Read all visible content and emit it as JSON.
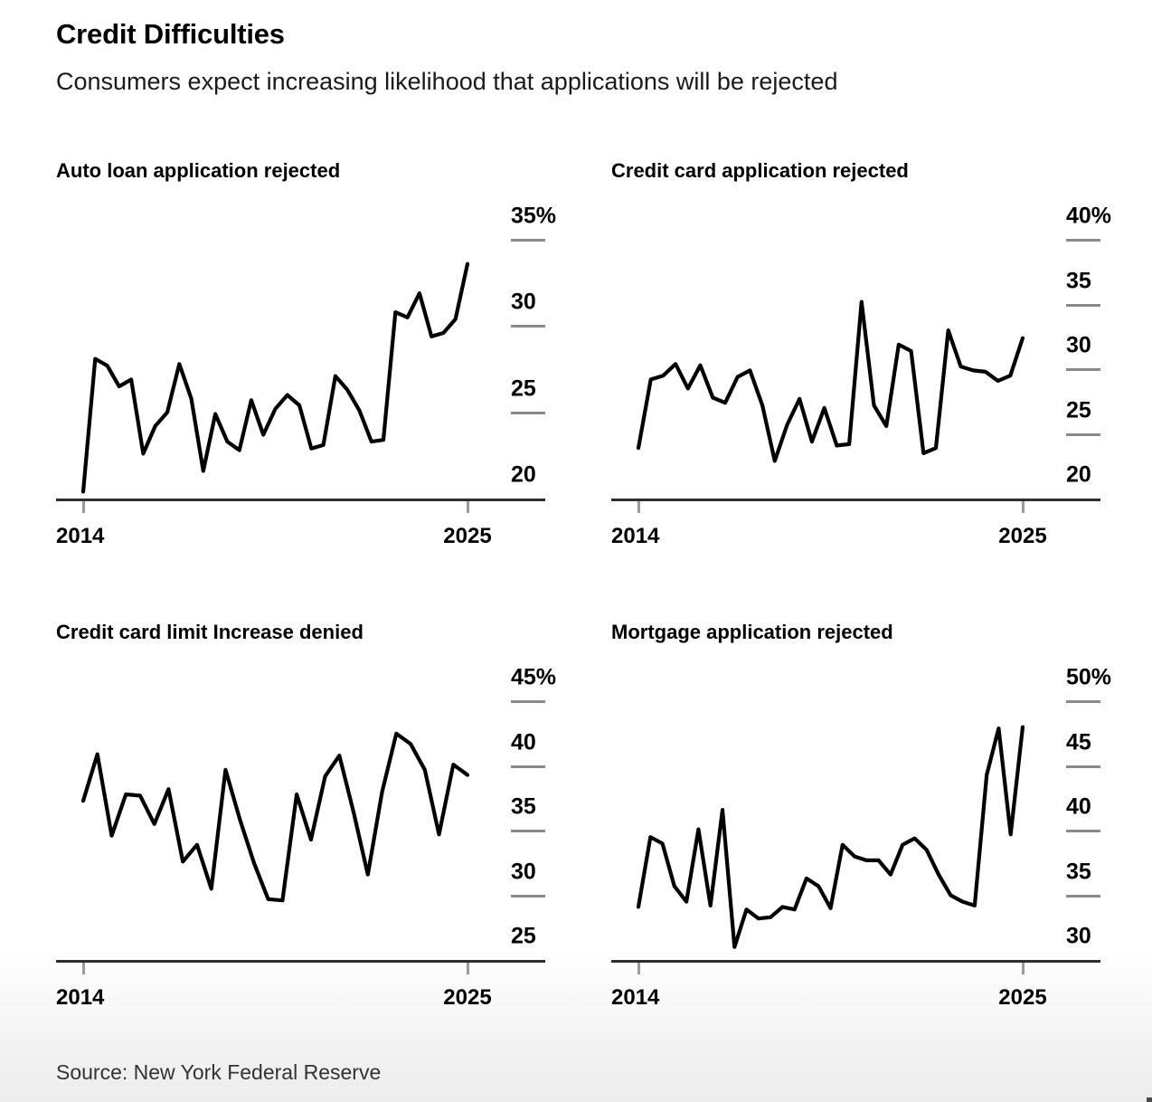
{
  "header": {
    "title": "Credit Difficulties",
    "subtitle": "Consumers expect increasing likelihood that applications will be rejected"
  },
  "source": {
    "label": "Source: New York Federal Reserve"
  },
  "colors": {
    "line": "#000000",
    "baseline": "#2e2e2e",
    "value_dash": "#8a8a8a",
    "axis_tick": "#9a9a9a",
    "source_text": "#333333",
    "bottom_fade": "#ececec"
  },
  "chart_data": [
    {
      "type": "line",
      "title": "Auto loan application rejected",
      "x_tick_labels": [
        "2014",
        "2025"
      ],
      "x_range": [
        2014,
        2025
      ],
      "unit": "%",
      "grid": "right-axis-dashes",
      "legend": "none",
      "y_axis": {
        "labels": [
          "35%",
          "30",
          "25",
          "20"
        ],
        "values": [
          35,
          30,
          25,
          20
        ],
        "baseline_value": 20
      },
      "ylim": [
        20,
        35
      ],
      "values": [
        20.4,
        28.1,
        27.7,
        26.5,
        26.9,
        22.6,
        24.2,
        25.0,
        27.8,
        25.8,
        21.6,
        24.9,
        23.3,
        22.8,
        25.7,
        23.7,
        25.2,
        26.0,
        25.4,
        22.9,
        23.1,
        27.1,
        26.3,
        25.1,
        23.3,
        23.4,
        30.8,
        30.5,
        31.9,
        29.4,
        29.6,
        30.4,
        33.6
      ]
    },
    {
      "type": "line",
      "title": "Credit card application rejected",
      "x_tick_labels": [
        "2014",
        "2025"
      ],
      "x_range": [
        2014,
        2025
      ],
      "unit": "%",
      "grid": "right-axis-dashes",
      "legend": "none",
      "y_axis": {
        "labels": [
          "40%",
          "35",
          "30",
          "25",
          "20"
        ],
        "values": [
          40,
          35,
          30,
          25,
          20
        ],
        "baseline_value": 20
      },
      "ylim": [
        20,
        40
      ],
      "values": [
        23.9,
        29.2,
        29.5,
        30.4,
        28.5,
        30.3,
        27.8,
        27.4,
        29.4,
        29.9,
        27.2,
        22.9,
        25.7,
        27.7,
        24.4,
        27.0,
        24.1,
        24.2,
        35.2,
        27.2,
        25.6,
        31.9,
        31.4,
        23.5,
        23.9,
        33.0,
        30.2,
        29.9,
        29.8,
        29.1,
        29.5,
        32.4
      ]
    },
    {
      "type": "line",
      "title": "Credit card limit Increase denied",
      "x_tick_labels": [
        "2014",
        "2025"
      ],
      "x_range": [
        2014,
        2025
      ],
      "unit": "%",
      "grid": "right-axis-dashes",
      "legend": "none",
      "y_axis": {
        "labels": [
          "45%",
          "40",
          "35",
          "30",
          "25"
        ],
        "values": [
          45,
          40,
          35,
          30,
          25
        ],
        "baseline_value": 25
      },
      "ylim": [
        25,
        45
      ],
      "values": [
        37.3,
        40.9,
        34.6,
        37.8,
        37.7,
        35.5,
        38.2,
        32.6,
        33.9,
        30.5,
        39.7,
        35.9,
        32.5,
        29.7,
        29.6,
        37.8,
        34.3,
        39.2,
        40.8,
        36.4,
        31.6,
        38.0,
        42.5,
        41.7,
        39.7,
        34.7,
        40.1,
        39.3
      ]
    },
    {
      "type": "line",
      "title": "Mortgage application rejected",
      "x_tick_labels": [
        "2014",
        "2025"
      ],
      "x_range": [
        2014,
        2025
      ],
      "unit": "%",
      "grid": "right-axis-dashes",
      "legend": "none",
      "y_axis": {
        "labels": [
          "50%",
          "45",
          "40",
          "35",
          "30"
        ],
        "values": [
          50,
          45,
          40,
          35,
          30
        ],
        "baseline_value": 30
      },
      "ylim": [
        30,
        50
      ],
      "values": [
        34.1,
        39.5,
        39.0,
        35.7,
        34.5,
        40.1,
        34.2,
        41.6,
        31.0,
        33.9,
        33.2,
        33.3,
        34.1,
        33.9,
        36.3,
        35.7,
        34.0,
        38.9,
        38.0,
        37.7,
        37.7,
        36.6,
        38.9,
        39.4,
        38.5,
        36.6,
        35.0,
        34.5,
        34.2,
        44.3,
        47.9,
        39.7,
        48.0
      ]
    }
  ]
}
